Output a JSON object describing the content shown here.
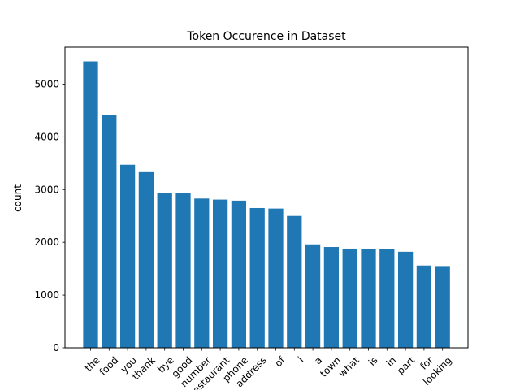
{
  "chart_data": {
    "type": "bar",
    "title": "Token Occurence in Dataset",
    "xlabel": "",
    "ylabel": "count",
    "categories": [
      "the",
      "food",
      "you",
      "thank",
      "bye",
      "good",
      "number",
      "restaurant",
      "phone",
      "address",
      "of",
      "i",
      "a",
      "town",
      "what",
      "is",
      "in",
      "part",
      "for",
      "looking"
    ],
    "values": [
      5430,
      4410,
      3470,
      3330,
      2930,
      2930,
      2830,
      2810,
      2790,
      2650,
      2640,
      2500,
      1960,
      1910,
      1880,
      1870,
      1870,
      1820,
      1560,
      1550
    ],
    "ylim": [
      0,
      5700
    ],
    "yticks": [
      0,
      1000,
      2000,
      3000,
      4000,
      5000
    ],
    "grid": false,
    "legend": "none",
    "bar_color": "#1f77b4"
  }
}
